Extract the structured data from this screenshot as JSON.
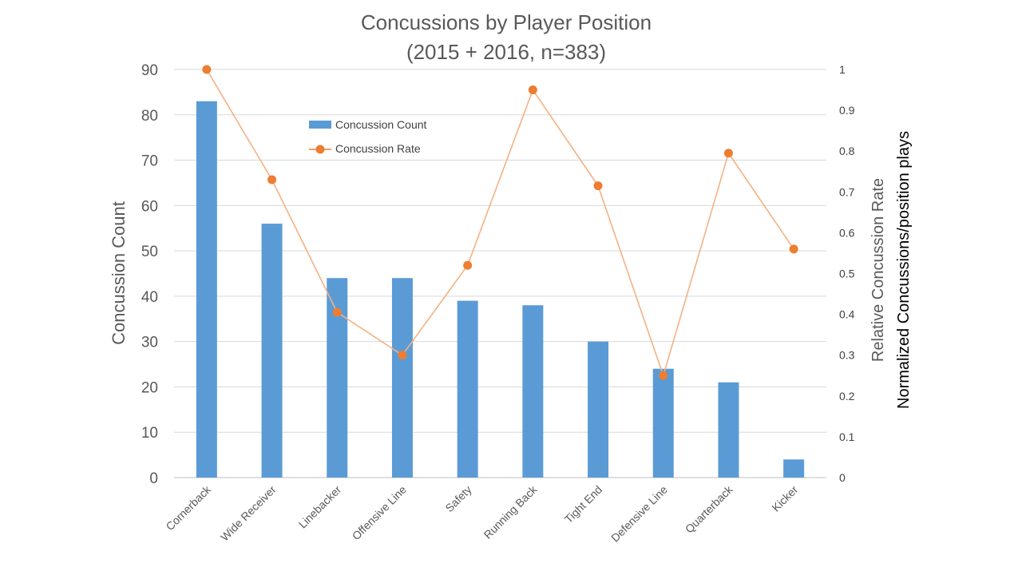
{
  "chart_data": {
    "type": "bar",
    "title": "Concussions by Player Position",
    "subtitle": "(2015 + 2016, n=383)",
    "categories": [
      "Cornerback",
      "Wide Receiver",
      "Linebacker",
      "Offensive Line",
      "Safety",
      "Running Back",
      "Tight End",
      "Defensive Line",
      "Quarterback",
      "Kicker"
    ],
    "series": [
      {
        "name": "Concussion Count",
        "type": "bar",
        "axis": "left",
        "color": "#5b9bd5",
        "values": [
          83,
          56,
          44,
          44,
          39,
          38,
          30,
          24,
          21,
          4
        ]
      },
      {
        "name": "Concussion Rate",
        "type": "line",
        "axis": "right",
        "color": "#ed7d31",
        "values": [
          1.0,
          0.73,
          0.405,
          0.3,
          0.52,
          0.95,
          0.715,
          0.25,
          0.795,
          0.56
        ]
      }
    ],
    "ylabel": "Concussion Count",
    "ylim": [
      0,
      90
    ],
    "yticks": [
      "0",
      "10",
      "20",
      "30",
      "40",
      "50",
      "60",
      "70",
      "80",
      "90"
    ],
    "y2label": "Relative Concussion Rate",
    "y2label_secondary": "Normalized Concussions/position plays",
    "y2lim": [
      0,
      1
    ],
    "y2ticks": [
      "0",
      "0.1",
      "0.2",
      "0.3",
      "0.4",
      "0.5",
      "0.6",
      "0.7",
      "0.8",
      "0.9",
      "1"
    ],
    "grid": true,
    "legend": "top-left"
  }
}
